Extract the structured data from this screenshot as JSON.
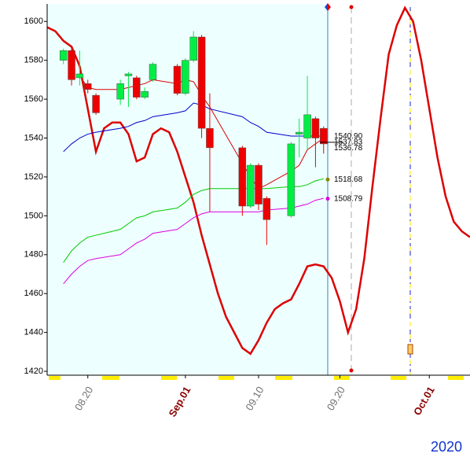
{
  "chart_data": {
    "type": "candlestick",
    "year_label": "2020",
    "xlim": [
      "2020-08-15",
      "2020-10-06"
    ],
    "xticks": [
      {
        "value": "2020-08-20",
        "label": "08.20"
      },
      {
        "value": "2020-09-01",
        "label": "Sep.01"
      },
      {
        "value": "2020-09-10",
        "label": "09.10"
      },
      {
        "value": "2020-09-20",
        "label": "09.20"
      },
      {
        "value": "2020-10-01",
        "label": "Oct.01"
      }
    ],
    "xtick_label_colors": [
      "#707070",
      "#8b0000",
      "#707070",
      "#707070",
      "#8b0000"
    ],
    "ylim": [
      1418,
      1609
    ],
    "yticks": [
      1420,
      1440,
      1460,
      1480,
      1500,
      1520,
      1540,
      1560,
      1580,
      1600
    ],
    "up_color": "#00ee44",
    "down_color": "#ee0000",
    "x": [
      "2020-08-17",
      "2020-08-18",
      "2020-08-19",
      "2020-08-20",
      "2020-08-21",
      "2020-08-24",
      "2020-08-25",
      "2020-08-26",
      "2020-08-27",
      "2020-08-28",
      "2020-08-31",
      "2020-09-01",
      "2020-09-02",
      "2020-09-03",
      "2020-09-04",
      "2020-09-08",
      "2020-09-09",
      "2020-09-10",
      "2020-09-11",
      "2020-09-14",
      "2020-09-15",
      "2020-09-16",
      "2020-09-17",
      "2020-09-18"
    ],
    "open": [
      1580,
      1585,
      1571,
      1568,
      1562,
      1560,
      1572,
      1571,
      1561,
      1570,
      1577,
      1563,
      1580,
      1592,
      1545,
      1535,
      1505,
      1526,
      1509,
      1500,
      1542,
      1540,
      1550,
      1545
    ],
    "close": [
      1585,
      1570,
      1573,
      1565,
      1553,
      1568,
      1573,
      1561,
      1564,
      1578,
      1563,
      1580,
      1592,
      1545,
      1535,
      1505,
      1526,
      1506,
      1498,
      1537,
      1543,
      1552,
      1540,
      1537
    ],
    "high": [
      1586,
      1586,
      1585,
      1570,
      1563,
      1570,
      1574,
      1572,
      1566,
      1579,
      1578,
      1581,
      1595,
      1593,
      1563,
      1536,
      1527,
      1527,
      1510,
      1538,
      1550,
      1572,
      1551,
      1546
    ],
    "low": [
      1578,
      1567,
      1567,
      1563,
      1552,
      1557,
      1556,
      1560,
      1560,
      1569,
      1562,
      1562,
      1579,
      1540,
      1502,
      1500,
      1504,
      1503,
      1485,
      1499,
      1530,
      1534,
      1525,
      1532
    ],
    "lines": [
      {
        "color": "#dd0000",
        "width": 2.5,
        "x": [
          "2020-08-15",
          "2020-08-16",
          "2020-08-17",
          "2020-08-18",
          "2020-08-19",
          "2020-08-20",
          "2020-08-21",
          "2020-08-22",
          "2020-08-23",
          "2020-08-24",
          "2020-08-25",
          "2020-08-26",
          "2020-08-27",
          "2020-08-28",
          "2020-08-29",
          "2020-08-30",
          "2020-08-31",
          "2020-09-01",
          "2020-09-02",
          "2020-09-03",
          "2020-09-04",
          "2020-09-05",
          "2020-09-06",
          "2020-09-07",
          "2020-09-08",
          "2020-09-09",
          "2020-09-10",
          "2020-09-11",
          "2020-09-12",
          "2020-09-13",
          "2020-09-14",
          "2020-09-15",
          "2020-09-16",
          "2020-09-17",
          "2020-09-18",
          "2020-09-19",
          "2020-09-20",
          "2020-09-21",
          "2020-09-22",
          "2020-09-23",
          "2020-09-24",
          "2020-09-25",
          "2020-09-26",
          "2020-09-27",
          "2020-09-28",
          "2020-09-29",
          "2020-09-30",
          "2020-10-01",
          "2020-10-02",
          "2020-10-03",
          "2020-10-04",
          "2020-10-05",
          "2020-10-06"
        ],
        "values": [
          1597,
          1595,
          1590,
          1587,
          1577,
          1555,
          1533,
          1545,
          1548,
          1548,
          1542,
          1528,
          1530,
          1542,
          1545,
          1543,
          1533,
          1520,
          1507,
          1490,
          1475,
          1460,
          1448,
          1440,
          1432,
          1429,
          1436,
          1445,
          1452,
          1455,
          1457,
          1465,
          1474,
          1475,
          1474,
          1468,
          1456,
          1440,
          1452,
          1478,
          1515,
          1550,
          1583,
          1598,
          1607,
          1600,
          1580,
          1555,
          1530,
          1510,
          1497,
          1492,
          1489
        ]
      },
      {
        "color": "#dd0000",
        "width": 1,
        "x": [
          "2020-08-19",
          "2020-08-20",
          "2020-08-21",
          "2020-08-24",
          "2020-08-25",
          "2020-08-26",
          "2020-08-27",
          "2020-08-28",
          "2020-08-31",
          "2020-09-01",
          "2020-09-02",
          "2020-09-03",
          "2020-09-04",
          "2020-09-08",
          "2020-09-09",
          "2020-09-10",
          "2020-09-11",
          "2020-09-14",
          "2020-09-15",
          "2020-09-16",
          "2020-09-17",
          "2020-09-18"
        ],
        "values": [
          1572,
          1566,
          1565,
          1565,
          1566,
          1567,
          1568,
          1570,
          1568,
          1570,
          1569,
          1562,
          1556,
          1527,
          1520,
          1514,
          1516,
          1523,
          1526,
          1534,
          1537,
          1540
        ]
      },
      {
        "color": "#0000cc",
        "width": 1,
        "x": [
          "2020-08-17",
          "2020-08-18",
          "2020-08-19",
          "2020-08-20",
          "2020-08-21",
          "2020-08-24",
          "2020-08-25",
          "2020-08-26",
          "2020-08-27",
          "2020-08-28",
          "2020-08-31",
          "2020-09-01",
          "2020-09-02",
          "2020-09-03",
          "2020-09-04",
          "2020-09-08",
          "2020-09-09",
          "2020-09-10",
          "2020-09-11",
          "2020-09-14",
          "2020-09-15",
          "2020-09-16",
          "2020-09-17",
          "2020-09-18"
        ],
        "values": [
          1533,
          1537,
          1540,
          1542,
          1543,
          1545,
          1546,
          1548,
          1549,
          1551,
          1553,
          1554,
          1558,
          1557,
          1555,
          1551,
          1548,
          1546,
          1543,
          1541,
          1541,
          1541,
          1541,
          1541
        ]
      },
      {
        "color": "#00cc00",
        "width": 1,
        "x": [
          "2020-08-17",
          "2020-08-18",
          "2020-08-19",
          "2020-08-20",
          "2020-08-21",
          "2020-08-24",
          "2020-08-25",
          "2020-08-26",
          "2020-08-27",
          "2020-08-28",
          "2020-08-31",
          "2020-09-01",
          "2020-09-02",
          "2020-09-03",
          "2020-09-04",
          "2020-09-08",
          "2020-09-09",
          "2020-09-10",
          "2020-09-11",
          "2020-09-14",
          "2020-09-15",
          "2020-09-16",
          "2020-09-17",
          "2020-09-18"
        ],
        "values": [
          1476,
          1482,
          1486,
          1489,
          1490,
          1493,
          1496,
          1499,
          1500,
          1502,
          1504,
          1507,
          1511,
          1513,
          1514,
          1514,
          1514,
          1514,
          1514,
          1515,
          1515,
          1516,
          1518,
          1519
        ]
      },
      {
        "color": "#dd00dd",
        "width": 1,
        "x": [
          "2020-08-17",
          "2020-08-18",
          "2020-08-19",
          "2020-08-20",
          "2020-08-21",
          "2020-08-24",
          "2020-08-25",
          "2020-08-26",
          "2020-08-27",
          "2020-08-28",
          "2020-08-31",
          "2020-09-01",
          "2020-09-02",
          "2020-09-03",
          "2020-09-04",
          "2020-09-08",
          "2020-09-09",
          "2020-09-10",
          "2020-09-11",
          "2020-09-14",
          "2020-09-15",
          "2020-09-16",
          "2020-09-17",
          "2020-09-18"
        ],
        "values": [
          1465,
          1470,
          1474,
          1477,
          1478,
          1480,
          1483,
          1486,
          1488,
          1491,
          1493,
          1496,
          1499,
          1501,
          1502,
          1502,
          1502,
          1502,
          1503,
          1504,
          1505,
          1506,
          1508,
          1509
        ]
      }
    ],
    "price_labels": {
      "values": [
        1540.9,
        1537.83,
        1536.78,
        1518.68,
        1508.79
      ],
      "value_labels": [
        "1540.90",
        "1537.83",
        "1536.78",
        "1518.68",
        "1508.79"
      ],
      "dot_colors": [
        null,
        null,
        null,
        "#888800",
        "#dd00dd"
      ]
    }
  }
}
